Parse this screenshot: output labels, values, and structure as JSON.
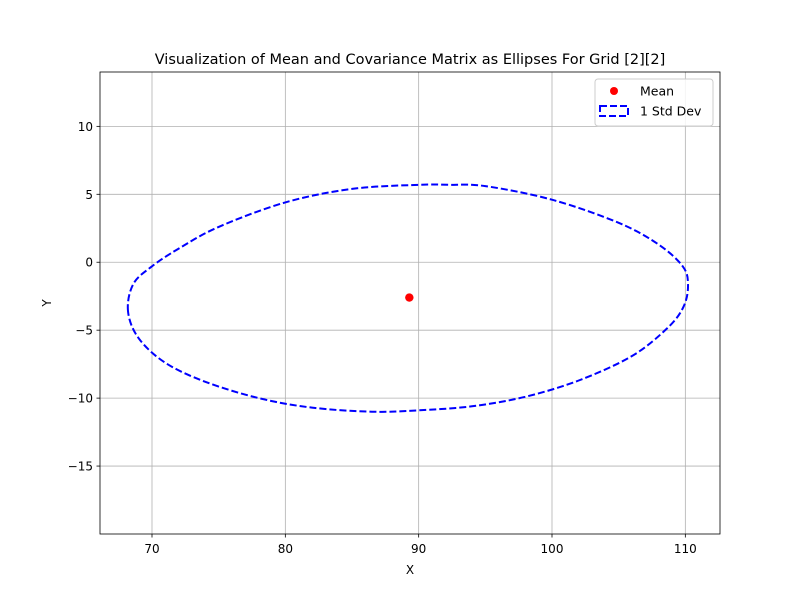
{
  "chart_data": {
    "type": "scatter",
    "title": "Visualization of Mean and Covariance Matrix as Ellipses For Grid [2][2]",
    "xlabel": "X",
    "ylabel": "Y",
    "xlim": [
      66.1,
      112.6
    ],
    "ylim": [
      -20.0,
      14.0
    ],
    "xticks": [
      70,
      80,
      90,
      100,
      110
    ],
    "yticks": [
      -15,
      -10,
      -5,
      0,
      5,
      10
    ],
    "xtick_labels": [
      "70",
      "80",
      "90",
      "100",
      "110"
    ],
    "ytick_labels": [
      "−15",
      "−10",
      "−5",
      "0",
      "5",
      "10"
    ],
    "grid": true,
    "legend_position": "top-right",
    "series": [
      {
        "name": "Mean",
        "kind": "point",
        "x": 89.3,
        "y": -2.6,
        "color": "#ff0000"
      },
      {
        "name": "1 Std Dev",
        "kind": "ellipse",
        "color": "#0000ff",
        "linestyle": "dashed",
        "points": [
          [
            68.2,
            -3.6
          ],
          [
            68.6,
            -1.6
          ],
          [
            70.0,
            -0.3
          ],
          [
            72.0,
            1.0
          ],
          [
            75.0,
            2.6
          ],
          [
            80.0,
            4.4
          ],
          [
            85.0,
            5.4
          ],
          [
            90.0,
            5.7
          ],
          [
            92.2,
            5.7
          ],
          [
            95.0,
            5.6
          ],
          [
            100.0,
            4.6
          ],
          [
            105.0,
            2.9
          ],
          [
            108.0,
            1.3
          ],
          [
            109.8,
            -0.3
          ],
          [
            110.2,
            -1.6
          ],
          [
            109.9,
            -3.2
          ],
          [
            108.7,
            -4.8
          ],
          [
            106.0,
            -6.9
          ],
          [
            102.0,
            -8.7
          ],
          [
            98.0,
            -9.9
          ],
          [
            94.0,
            -10.6
          ],
          [
            90.0,
            -10.9
          ],
          [
            86.5,
            -11.0
          ],
          [
            82.0,
            -10.7
          ],
          [
            78.0,
            -10.0
          ],
          [
            74.0,
            -8.8
          ],
          [
            71.0,
            -7.4
          ],
          [
            69.0,
            -5.6
          ],
          [
            68.2,
            -3.6
          ]
        ]
      }
    ]
  }
}
